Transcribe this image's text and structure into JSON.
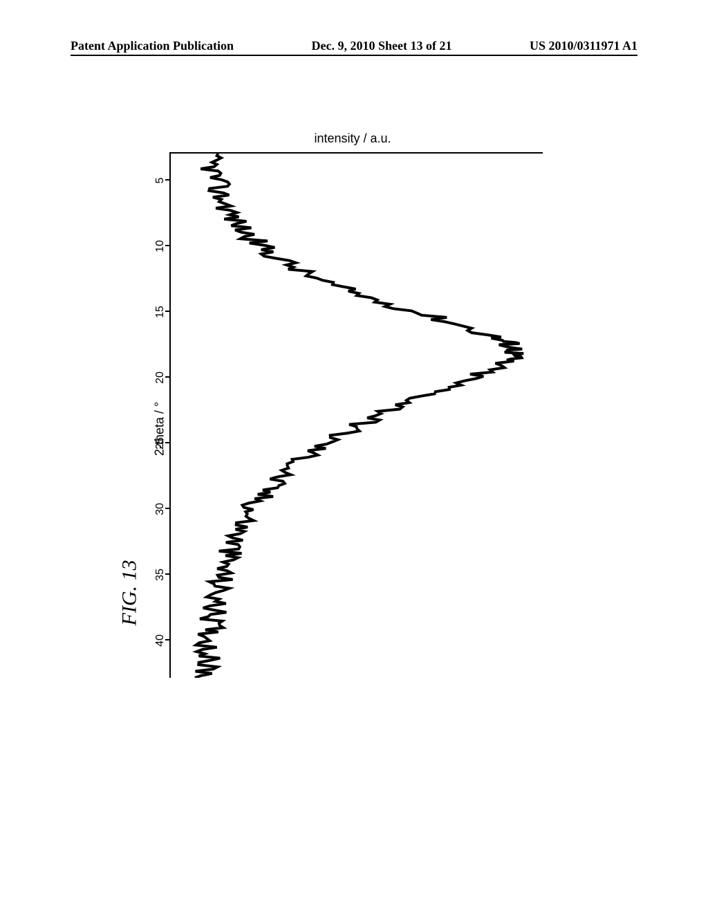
{
  "header": {
    "left": "Patent Application Publication",
    "center": "Dec. 9, 2010  Sheet 13 of 21",
    "right": "US 2010/0311971 A1"
  },
  "figure_label": "FIG. 13",
  "chart": {
    "type": "line",
    "x_axis_label": "2-theta / °",
    "y_axis_label": "intensity / a.u.",
    "x_ticks": [
      5,
      10,
      15,
      20,
      25,
      30,
      35,
      40
    ],
    "x_min": 3,
    "x_max": 43,
    "y_min": 0,
    "y_max": 100,
    "line_color": "#000000",
    "line_width": 4,
    "noise_amplitude": 3.5,
    "background": "#ffffff",
    "data_points": [
      [
        3,
        10
      ],
      [
        4,
        11
      ],
      [
        5,
        12
      ],
      [
        6,
        13
      ],
      [
        7,
        15
      ],
      [
        8,
        17
      ],
      [
        9,
        20
      ],
      [
        10,
        24
      ],
      [
        11,
        29
      ],
      [
        12,
        35
      ],
      [
        13,
        43
      ],
      [
        14,
        53
      ],
      [
        15,
        65
      ],
      [
        16,
        77
      ],
      [
        17,
        87
      ],
      [
        17.5,
        91
      ],
      [
        18,
        93
      ],
      [
        18.5,
        92
      ],
      [
        19,
        89
      ],
      [
        20,
        82
      ],
      [
        21,
        73
      ],
      [
        22,
        64
      ],
      [
        23,
        56
      ],
      [
        24,
        49
      ],
      [
        25,
        42
      ],
      [
        26,
        37
      ],
      [
        27,
        32
      ],
      [
        28,
        28
      ],
      [
        29,
        25
      ],
      [
        30,
        22
      ],
      [
        31,
        20
      ],
      [
        32,
        18
      ],
      [
        33,
        16.5
      ],
      [
        34,
        15
      ],
      [
        35,
        14
      ],
      [
        36,
        13
      ],
      [
        37,
        12.2
      ],
      [
        38,
        11.5
      ],
      [
        39,
        11
      ],
      [
        40,
        10.5
      ],
      [
        41,
        10
      ],
      [
        42,
        9.7
      ],
      [
        43,
        9.5
      ]
    ]
  }
}
